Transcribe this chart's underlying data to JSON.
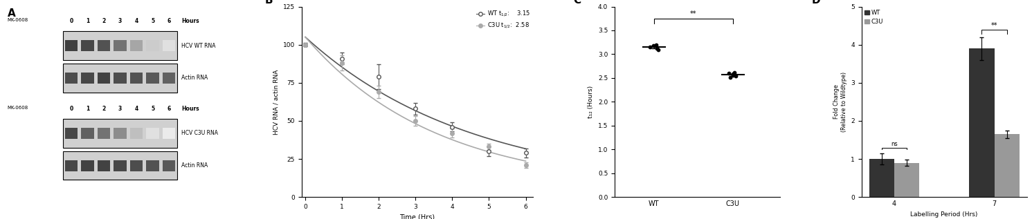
{
  "panel_A": {
    "label": "A",
    "wt_label": "HCV WT RNA",
    "c3u_label": "HCV C3U RNA",
    "actin_label": "Actin RNA",
    "mk_label": "MK-0608",
    "hours_label": "Hours",
    "hours": [
      0,
      1,
      2,
      3,
      4,
      5,
      6
    ]
  },
  "panel_B": {
    "label": "B",
    "wt_data_x": [
      0,
      1,
      2,
      3,
      4,
      5,
      6
    ],
    "wt_data_y": [
      100,
      91,
      79,
      58,
      46,
      30,
      29
    ],
    "wt_err": [
      1,
      4,
      8,
      4,
      3,
      3,
      3
    ],
    "c3u_data_x": [
      0,
      1,
      2,
      3,
      4,
      5,
      6
    ],
    "c3u_data_y": [
      100,
      88,
      69,
      50,
      42,
      33,
      21
    ],
    "c3u_err": [
      1,
      5,
      4,
      3,
      3,
      2,
      2
    ],
    "ylabel": "HCV RNA / actin RNA",
    "xlabel": "Time (Hrs)",
    "ylim": [
      0,
      125
    ],
    "yticks": [
      0,
      25,
      50,
      75,
      100,
      125
    ],
    "xlim": [
      0,
      6
    ],
    "xticks": [
      0,
      1,
      2,
      3,
      4,
      5,
      6
    ],
    "wt_t12": "3.15",
    "c3u_t12": "2.58",
    "wt_color": "#555555",
    "c3u_color": "#aaaaaa"
  },
  "panel_C": {
    "label": "C",
    "wt_points": [
      3.15,
      3.12,
      3.18,
      3.2,
      3.1
    ],
    "c3u_points": [
      2.58,
      2.55,
      2.6,
      2.52,
      2.57,
      2.62,
      2.54
    ],
    "wt_mean": 3.15,
    "c3u_mean": 2.58,
    "wt_sem": 0.03,
    "c3u_sem": 0.02,
    "ylabel": "t₁₂ (Hours)",
    "ylim": [
      0.0,
      4.0
    ],
    "yticks": [
      0.0,
      0.5,
      1.0,
      1.5,
      2.0,
      2.5,
      3.0,
      3.5,
      4.0
    ],
    "categories": [
      "WT",
      "C3U"
    ],
    "sig_label": "**"
  },
  "panel_D": {
    "label": "D",
    "categories": [
      "4",
      "7"
    ],
    "wt_values": [
      1.0,
      3.9
    ],
    "c3u_values": [
      0.9,
      1.65
    ],
    "wt_err": [
      0.15,
      0.3
    ],
    "c3u_err": [
      0.08,
      0.1
    ],
    "wt_color": "#333333",
    "c3u_color": "#999999",
    "ylabel": "Fold Change\n(Relative to Wildtype)",
    "xlabel": "Labelling Period (Hrs)",
    "ylim": [
      0,
      5
    ],
    "yticks": [
      0,
      1,
      2,
      3,
      4,
      5
    ],
    "sig_4": "ns",
    "sig_7": "**"
  }
}
